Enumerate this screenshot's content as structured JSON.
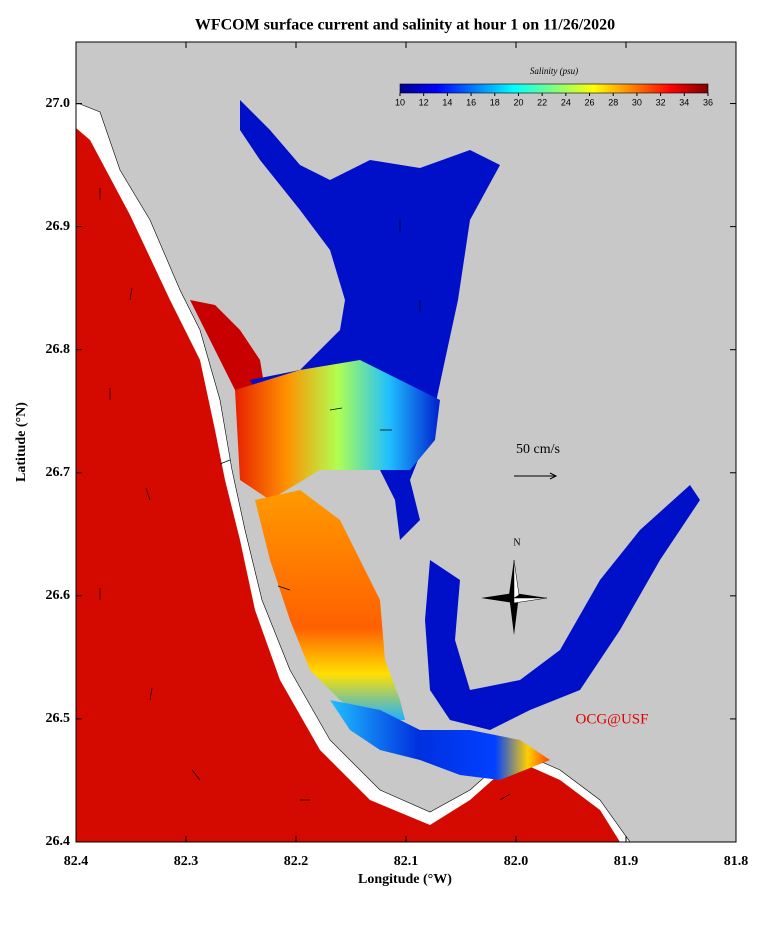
{
  "title": "WFCOM surface current and salinity at hour 1 on 11/26/2020",
  "x_axis": {
    "label": "Longitude (°W)",
    "lim": [
      82.4,
      81.8
    ],
    "ticks": [
      82.4,
      82.3,
      82.2,
      82.1,
      {
        "value": 82,
        "label": "82.0"
      },
      81.9,
      81.8
    ]
  },
  "y_axis": {
    "label": "Latitude (°N)",
    "lim": [
      26.4,
      27.05
    ],
    "ticks": [
      26.4,
      26.5,
      26.6,
      26.7,
      26.8,
      26.9,
      {
        "value": 27,
        "label": "27.0"
      }
    ]
  },
  "colorbar": {
    "label": "Salinity (psu)",
    "lim": [
      10,
      36
    ],
    "ticks": [
      10,
      12,
      14,
      16,
      18,
      20,
      22,
      24,
      26,
      28,
      30,
      32,
      34,
      36
    ]
  },
  "scale_label": "50 cm/s",
  "compass_label": "N",
  "credit": "OCG@USF"
}
